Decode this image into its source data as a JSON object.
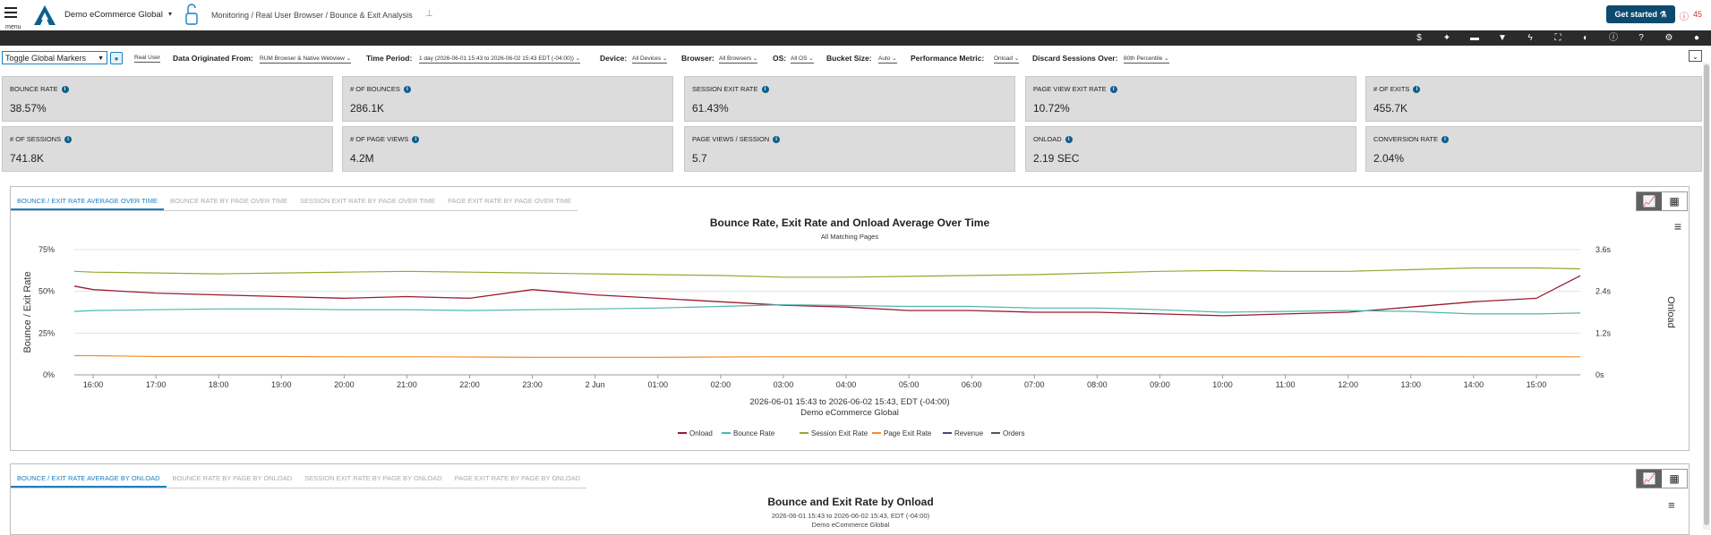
{
  "header": {
    "menu_label": "menu",
    "app_name": "Demo eCommerce Global",
    "breadcrumb": "Monitoring / Real User Browser / Bounce & Exit Analysis",
    "get_started": "Get started",
    "alert_count": "45"
  },
  "toolbar_icons": [
    "dollar-icon",
    "sparkle-icon",
    "comment-icon",
    "filter-icon",
    "bolt-icon",
    "fullscreen-icon",
    "contrast-icon",
    "info-icon",
    "help-icon",
    "gear-icon",
    "user-icon"
  ],
  "filters": {
    "toggle_markers": "Toggle Global Markers",
    "real_user": "Real User",
    "origin_label": "Data Originated From:",
    "origin_value": "RUM Browser & Native Webview",
    "period_label": "Time Period:",
    "period_value": "1 day (2026-06-01 15:43 to 2026-06-02 15:43 EDT (-04:00))",
    "device_label": "Device:",
    "device_value": "All Devices",
    "browser_label": "Browser:",
    "browser_value": "All Browsers",
    "os_label": "OS:",
    "os_value": "All OS",
    "bucket_label": "Bucket Size:",
    "bucket_value": "Auto",
    "perf_label": "Performance Metric:",
    "perf_value": "Onload",
    "discard_label": "Discard Sessions Over:",
    "discard_value": "80th Percentile"
  },
  "metrics": [
    {
      "label": "BOUNCE RATE",
      "value": "38.57%"
    },
    {
      "label": "# OF BOUNCES",
      "value": "286.1K"
    },
    {
      "label": "SESSION EXIT RATE",
      "value": "61.43%"
    },
    {
      "label": "PAGE VIEW EXIT RATE",
      "value": "10.72%"
    },
    {
      "label": "# OF EXITS",
      "value": "455.7K"
    },
    {
      "label": "# OF SESSIONS",
      "value": "741.8K"
    },
    {
      "label": "# OF PAGE VIEWS",
      "value": "4.2M"
    },
    {
      "label": "PAGE VIEWS / SESSION",
      "value": "5.7"
    },
    {
      "label": "ONLOAD",
      "value": "2.19 SEC"
    },
    {
      "label": "CONVERSION RATE",
      "value": "2.04%"
    }
  ],
  "panel1": {
    "tabs": [
      "BOUNCE / EXIT RATE AVERAGE OVER TIME",
      "BOUNCE RATE BY PAGE OVER TIME",
      "SESSION EXIT RATE BY PAGE OVER TIME",
      "PAGE EXIT RATE BY PAGE OVER TIME"
    ],
    "footer_range": "2026-06-01 15:43 to 2026-06-02 15:43, EDT (-04:00)",
    "footer_name": "Demo eCommerce Global"
  },
  "panel2": {
    "tabs": [
      "BOUNCE / EXIT RATE AVERAGE BY ONLOAD",
      "BOUNCE RATE BY PAGE BY ONLOAD",
      "SESSION EXIT RATE BY PAGE BY ONLOAD",
      "PAGE EXIT RATE BY PAGE BY ONLOAD"
    ],
    "title": "Bounce and Exit Rate by Onload",
    "subtitle_range": "2026-06-01 15:43 to 2026-06-02 15:43, EDT (-04:00)",
    "subtitle_name": "Demo eCommerce Global"
  },
  "chart_data": {
    "type": "line",
    "title": "Bounce Rate, Exit Rate and Onload Average Over Time",
    "subtitle": "All Matching Pages",
    "ylabel": "Bounce / Exit Rate",
    "ylabel_right": "Onload",
    "ylim": [
      0,
      75
    ],
    "ylim_right": [
      0,
      3.6
    ],
    "y_ticks": [
      "0%",
      "25%",
      "50%",
      "75%"
    ],
    "y_ticks_right": [
      "0s",
      "1.2s",
      "2.4s",
      "3.6s"
    ],
    "x_ticks": [
      "16:00",
      "17:00",
      "18:00",
      "19:00",
      "20:00",
      "21:00",
      "22:00",
      "23:00",
      "2 Jun",
      "01:00",
      "02:00",
      "03:00",
      "04:00",
      "05:00",
      "06:00",
      "07:00",
      "08:00",
      "09:00",
      "10:00",
      "11:00",
      "12:00",
      "13:00",
      "14:00",
      "15:00"
    ],
    "x_hours": [
      15.7,
      16,
      17,
      18,
      19,
      20,
      21,
      22,
      23,
      24,
      25,
      26,
      27,
      28,
      29,
      30,
      31,
      32,
      33,
      34,
      35,
      36,
      37,
      38,
      39,
      39.7
    ],
    "legend": [
      "Onload",
      "Bounce Rate",
      "Session Exit Rate",
      "Page Exit Rate",
      "Revenue",
      "Orders"
    ],
    "colors": {
      "Onload": "#9b1b30",
      "Bounce Rate": "#4fb6b0",
      "Session Exit Rate": "#9aa531",
      "Page Exit Rate": "#f28e2b",
      "Revenue": "#5a3e7a",
      "Orders": "#555555"
    },
    "series": [
      {
        "name": "Onload",
        "axis": "right",
        "values": [
          2.55,
          2.45,
          2.35,
          2.3,
          2.25,
          2.2,
          2.25,
          2.2,
          2.45,
          2.3,
          2.2,
          2.1,
          2.0,
          1.95,
          1.85,
          1.85,
          1.8,
          1.8,
          1.75,
          1.7,
          1.75,
          1.8,
          1.95,
          2.1,
          2.2,
          2.85
        ]
      },
      {
        "name": "Bounce Rate",
        "axis": "left",
        "values": [
          38,
          38.5,
          39,
          39.5,
          39.5,
          39,
          39,
          38.5,
          39,
          39.5,
          40,
          41,
          42,
          41.5,
          41,
          41,
          40,
          40,
          39,
          37.5,
          38,
          38.5,
          38,
          36.5,
          36.5,
          37
        ]
      },
      {
        "name": "Session Exit Rate",
        "axis": "left",
        "values": [
          62,
          61.5,
          61,
          60.5,
          61,
          61.5,
          62,
          61.5,
          61,
          60.5,
          60,
          59.5,
          58.5,
          58.5,
          59,
          59.5,
          60,
          61,
          62,
          62.5,
          62,
          62,
          63,
          64,
          64,
          63.5
        ]
      },
      {
        "name": "Page Exit Rate",
        "axis": "left",
        "values": [
          11.5,
          11.5,
          11,
          11,
          11,
          10.8,
          10.8,
          10.7,
          10.5,
          10.5,
          10.5,
          10.7,
          10.8,
          10.8,
          10.8,
          10.8,
          10.8,
          10.8,
          10.8,
          10.8,
          10.8,
          10.9,
          10.9,
          10.8,
          10.8,
          10.8
        ]
      }
    ]
  }
}
